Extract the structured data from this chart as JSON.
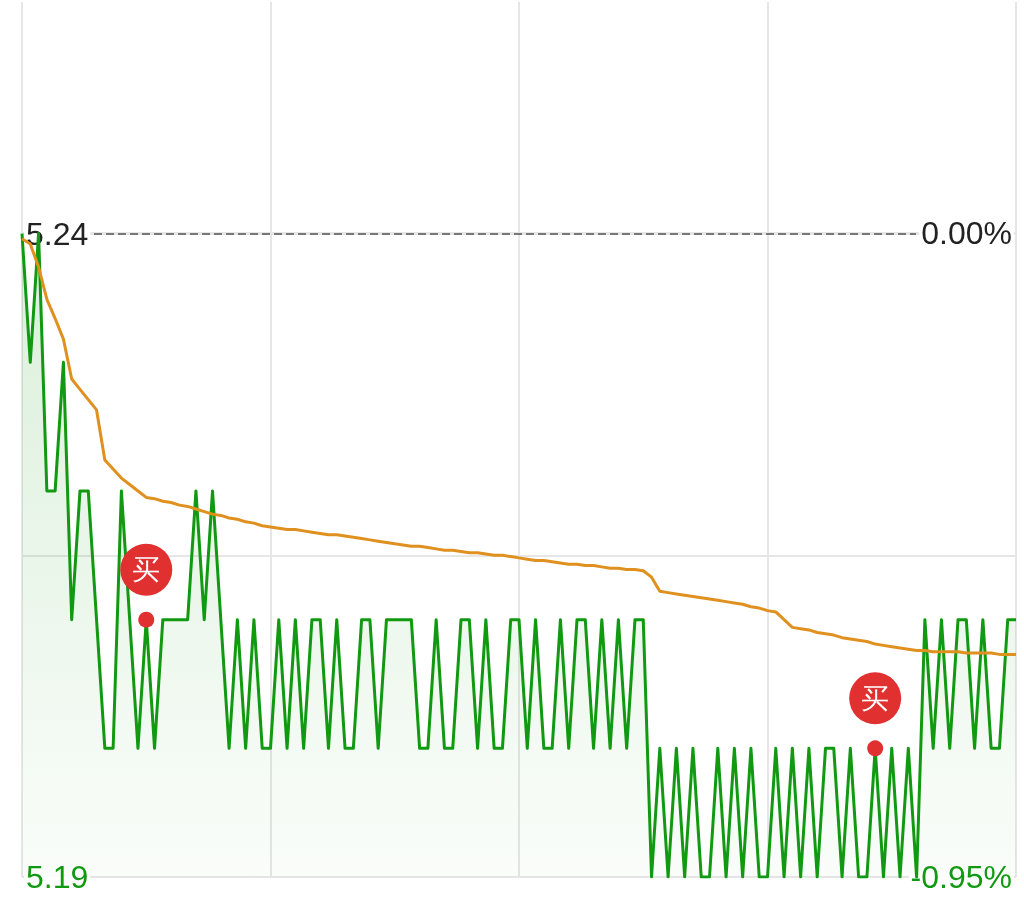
{
  "chart_data": {
    "type": "line",
    "categories": [
      null,
      null,
      null,
      null,
      null,
      null,
      null,
      null,
      null,
      null,
      null,
      null,
      null,
      null,
      null,
      null,
      null,
      null,
      null,
      null,
      null,
      null,
      null,
      null,
      null,
      null,
      null,
      null,
      null,
      null,
      null,
      null,
      null,
      null,
      null,
      null,
      null,
      null,
      null,
      null,
      null,
      null,
      null,
      null,
      null,
      null,
      null,
      null,
      null,
      null,
      null,
      null,
      null,
      null,
      null,
      null,
      null,
      null,
      null,
      null,
      null,
      null,
      null,
      null,
      null,
      null,
      null,
      null,
      null,
      null,
      null,
      null,
      null,
      null,
      null,
      null,
      null,
      null,
      null,
      null,
      null,
      null,
      null,
      null,
      null,
      null,
      null,
      null,
      null,
      null,
      null,
      null,
      null,
      null,
      null,
      null,
      null,
      null,
      null,
      null,
      null,
      null,
      null,
      null,
      null,
      null,
      null,
      null,
      null,
      null,
      null,
      null,
      null,
      null,
      null,
      null,
      null,
      null,
      null,
      null,
      null
    ],
    "ylim": [
      5.19,
      5.258
    ],
    "yticks": [
      5.19,
      {
        "value": 5.215,
        "label": null
      },
      5.24
    ],
    "y2lim": [
      -0.95,
      0.34
    ],
    "y2ticks": [
      {
        "value": -0.95,
        "label": "-0.95%"
      },
      {
        "value": 0,
        "label": "0.00%"
      }
    ],
    "tick_labels": "y",
    "grid": true,
    "series": [
      {
        "type": "area",
        "color": "#119911",
        "values": [
          5.24,
          5.23,
          5.24,
          5.22,
          5.22,
          5.23,
          5.21,
          5.22,
          5.22,
          5.21,
          5.2,
          5.2,
          5.22,
          5.21,
          5.2,
          5.21,
          5.2,
          5.21,
          5.21,
          5.21,
          5.21,
          5.22,
          5.21,
          5.22,
          5.21,
          5.2,
          5.21,
          5.2,
          5.21,
          5.2,
          5.2,
          5.21,
          5.2,
          5.21,
          5.2,
          5.21,
          5.21,
          5.2,
          5.21,
          5.2,
          5.2,
          5.21,
          5.21,
          5.2,
          5.21,
          5.21,
          5.21,
          5.21,
          5.2,
          5.2,
          5.21,
          5.2,
          5.2,
          5.21,
          5.21,
          5.2,
          5.21,
          5.2,
          5.2,
          5.21,
          5.21,
          5.2,
          5.21,
          5.2,
          5.2,
          5.21,
          5.2,
          5.21,
          5.21,
          5.2,
          5.21,
          5.2,
          5.21,
          5.2,
          5.21,
          5.21,
          5.19,
          5.2,
          5.19,
          5.2,
          5.19,
          5.2,
          5.19,
          5.19,
          5.2,
          5.19,
          5.2,
          5.19,
          5.2,
          5.19,
          5.19,
          5.2,
          5.19,
          5.2,
          5.19,
          5.2,
          5.19,
          5.2,
          5.2,
          5.19,
          5.2,
          5.19,
          5.19,
          5.2,
          5.19,
          5.2,
          5.19,
          5.2,
          5.19,
          5.21,
          5.2,
          5.21,
          5.2,
          5.21,
          5.21,
          5.2,
          5.21,
          5.2,
          5.2,
          5.21,
          5.21
        ],
        "value_labels": [
          null,
          null,
          null,
          null,
          null,
          null,
          null,
          null,
          null,
          null,
          null,
          null,
          null,
          null,
          null,
          "买",
          null,
          null,
          null,
          null,
          null,
          null,
          null,
          null,
          null,
          null,
          null,
          null,
          null,
          null,
          null,
          null,
          null,
          null,
          null,
          null,
          null,
          null,
          null,
          null,
          null,
          null,
          null,
          null,
          null,
          null,
          null,
          null,
          null,
          null,
          null,
          null,
          null,
          null,
          null,
          null,
          null,
          null,
          null,
          null,
          null,
          null,
          null,
          null,
          null,
          null,
          null,
          null,
          null,
          null,
          null,
          null,
          null,
          null,
          null,
          null,
          null,
          null,
          null,
          null,
          null,
          null,
          null,
          null,
          null,
          null,
          null,
          null,
          null,
          null,
          null,
          null,
          null,
          null,
          null,
          null,
          null,
          null,
          null,
          null,
          null,
          null,
          null,
          "买",
          null,
          null,
          null,
          null,
          null,
          null,
          null,
          null,
          null,
          null,
          null,
          null,
          null,
          null,
          null,
          null,
          null
        ]
      },
      {
        "color": "#e0901e",
        "values": [
          5.2396,
          5.2392,
          5.2374,
          5.2349,
          5.2334,
          5.2318,
          5.2287,
          5.2279,
          5.2271,
          5.2263,
          5.2224,
          5.2217,
          5.221,
          5.2205,
          5.22,
          5.2195,
          5.2194,
          5.2192,
          5.2191,
          5.2189,
          5.2188,
          5.2186,
          5.2184,
          5.2182,
          5.2181,
          5.2179,
          5.2178,
          5.2176,
          5.2175,
          5.2173,
          5.2172,
          5.2171,
          5.217,
          5.217,
          5.2169,
          5.2168,
          5.2167,
          5.2166,
          5.2166,
          5.2165,
          5.2164,
          5.2163,
          5.2162,
          5.2161,
          5.216,
          5.2159,
          5.2158,
          5.2157,
          5.2157,
          5.2156,
          5.2155,
          5.2154,
          5.2154,
          5.2153,
          5.2152,
          5.2152,
          5.2151,
          5.215,
          5.215,
          5.2149,
          5.2148,
          5.2147,
          5.2146,
          5.2146,
          5.2145,
          5.2144,
          5.2143,
          5.2143,
          5.2142,
          5.2142,
          5.2141,
          5.214,
          5.214,
          5.2139,
          5.2139,
          5.2138,
          5.2133,
          5.2122,
          5.2121,
          5.212,
          5.2119,
          5.2118,
          5.2117,
          5.2116,
          5.2115,
          5.2114,
          5.2113,
          5.2112,
          5.211,
          5.2109,
          5.2107,
          5.2106,
          5.21,
          5.2094,
          5.2093,
          5.2092,
          5.209,
          5.2089,
          5.2088,
          5.2086,
          5.2085,
          5.2084,
          5.2083,
          5.2081,
          5.208,
          5.2079,
          5.2078,
          5.2077,
          5.2076,
          5.2076,
          5.2075,
          5.2075,
          5.2075,
          5.2075,
          5.2074,
          5.2074,
          5.2074,
          5.2074,
          5.2073,
          5.2073,
          5.2073
        ]
      }
    ],
    "ref_lines": [
      {
        "axis": "y",
        "value": 5.24,
        "line_style": "dashed",
        "color": "#777777"
      }
    ]
  }
}
